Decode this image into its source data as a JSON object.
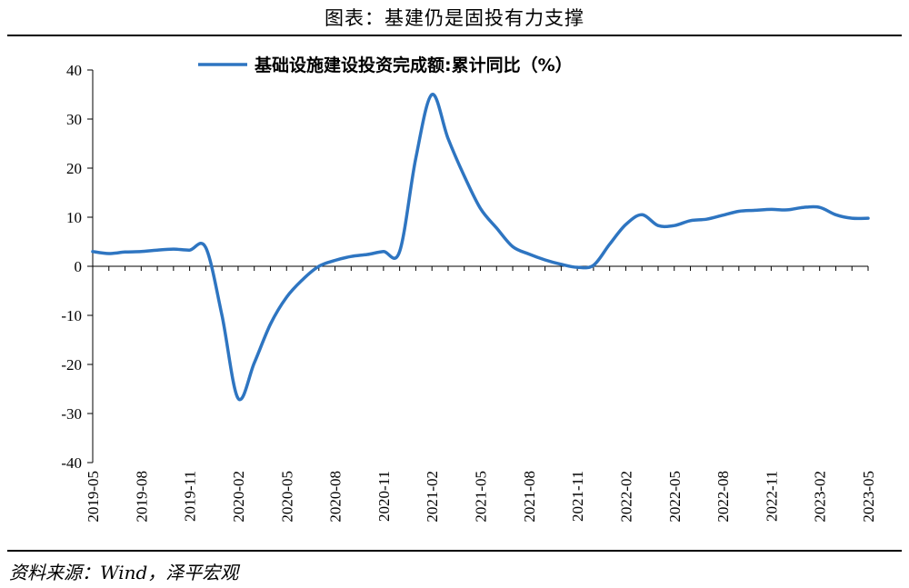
{
  "figure": {
    "title": "图表：基建仍是固投有力支撑",
    "source": "资料来源：Wind，泽平宏观"
  },
  "chart_data": {
    "type": "line",
    "xlabel": "",
    "ylabel": "",
    "ylim": [
      -40,
      40
    ],
    "yticks": [
      -40,
      -30,
      -20,
      -10,
      0,
      10,
      20,
      30,
      40
    ],
    "xtick_labels": [
      "2019-05",
      "2019-08",
      "2019-11",
      "2020-02",
      "2020-05",
      "2020-08",
      "2020-11",
      "2021-02",
      "2021-05",
      "2021-08",
      "2021-11",
      "2022-02",
      "2022-05",
      "2022-08",
      "2022-11",
      "2023-02",
      "2023-05"
    ],
    "grid": false,
    "legend_position": "top",
    "x": [
      "2019-05",
      "2019-06",
      "2019-07",
      "2019-08",
      "2019-09",
      "2019-10",
      "2019-11",
      "2019-12",
      "2020-01",
      "2020-02",
      "2020-03",
      "2020-04",
      "2020-05",
      "2020-06",
      "2020-07",
      "2020-08",
      "2020-09",
      "2020-10",
      "2020-11",
      "2020-12",
      "2021-01",
      "2021-02",
      "2021-03",
      "2021-04",
      "2021-05",
      "2021-06",
      "2021-07",
      "2021-08",
      "2021-09",
      "2021-10",
      "2021-11",
      "2021-12",
      "2022-01",
      "2022-02",
      "2022-03",
      "2022-04",
      "2022-05",
      "2022-06",
      "2022-07",
      "2022-08",
      "2022-09",
      "2022-10",
      "2022-11",
      "2022-12",
      "2023-01",
      "2023-02",
      "2023-03",
      "2023-04",
      "2023-05"
    ],
    "series": [
      {
        "name": "基础设施建设投资完成额:累计同比（%）",
        "color": "#2e75c1",
        "values": [
          3.0,
          2.6,
          2.9,
          3.0,
          3.3,
          3.5,
          3.3,
          3.8,
          -10.0,
          -26.9,
          -19.7,
          -11.8,
          -6.3,
          -2.7,
          0.0,
          1.2,
          2.0,
          2.4,
          3.0,
          3.0,
          22.0,
          35.0,
          26.0,
          18.4,
          11.8,
          7.8,
          4.0,
          2.5,
          1.3,
          0.4,
          -0.2,
          0.2,
          4.5,
          8.5,
          10.5,
          8.3,
          8.3,
          9.3,
          9.6,
          10.4,
          11.2,
          11.4,
          11.6,
          11.5,
          12.0,
          12.0,
          10.5,
          9.8,
          9.8
        ]
      }
    ]
  }
}
